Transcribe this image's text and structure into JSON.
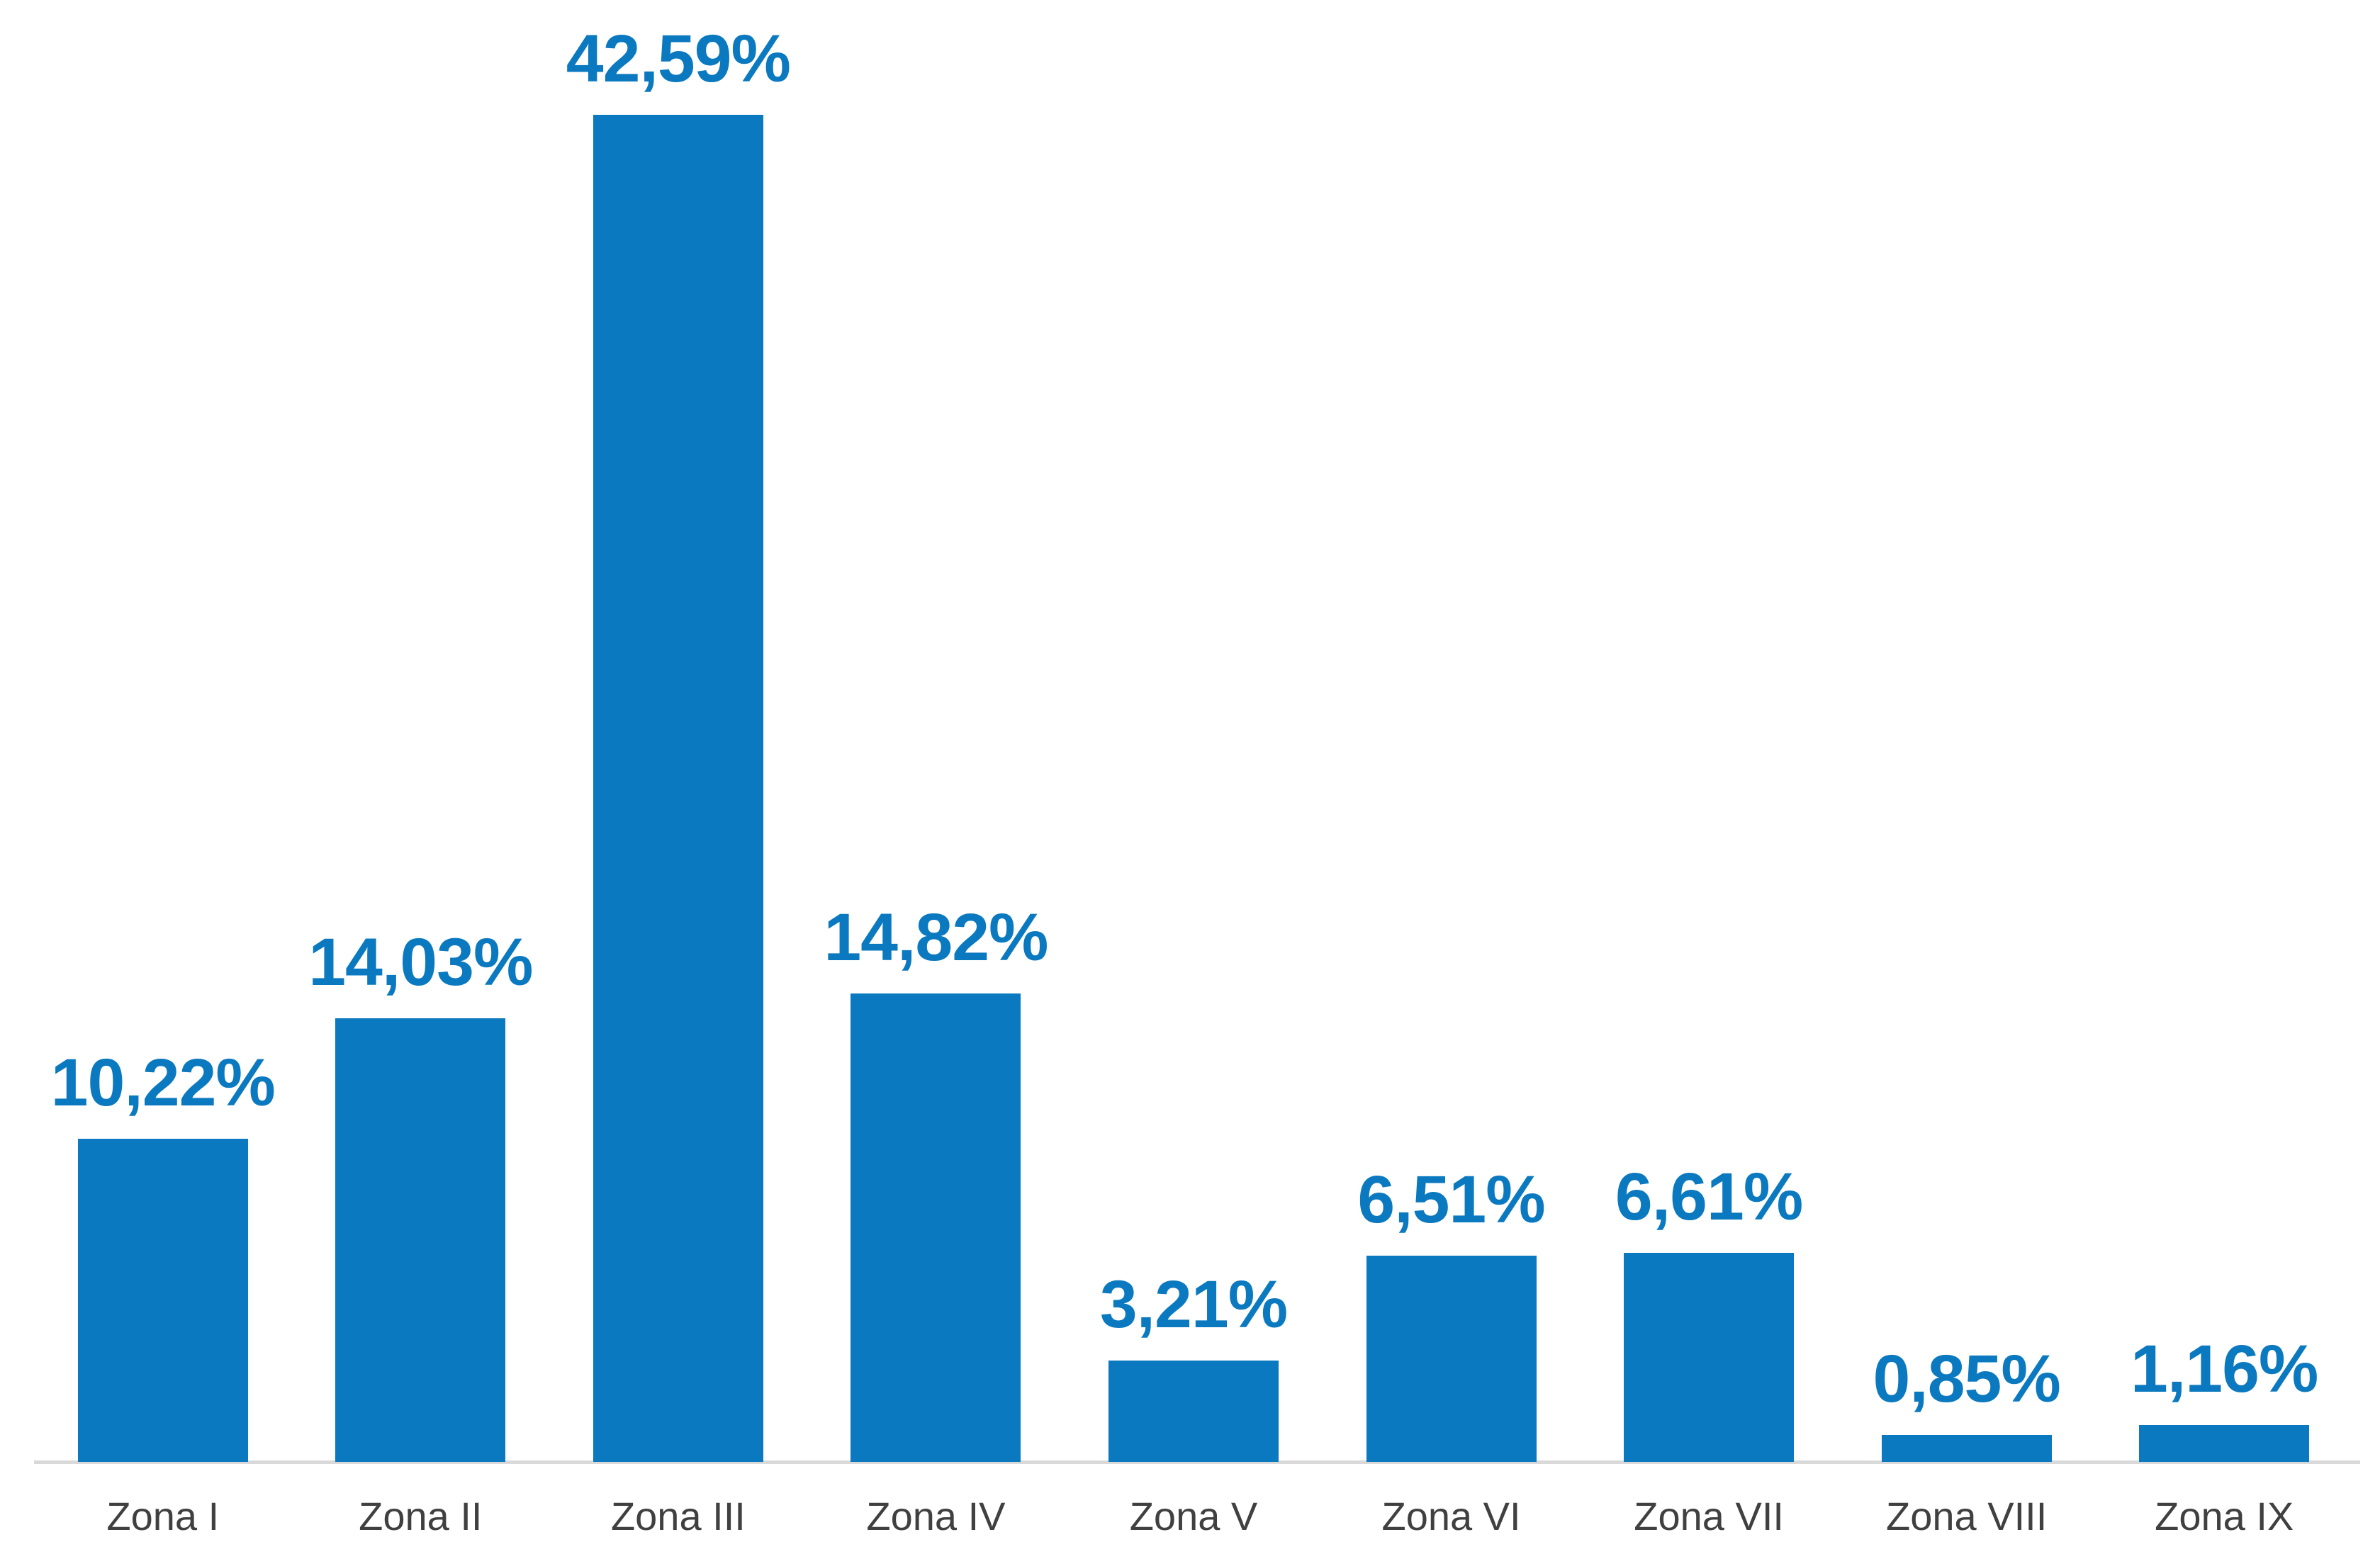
{
  "colors": {
    "bar": "#0b79bf",
    "value_label": "#0b79bf",
    "category_label": "#404040",
    "baseline": "#d9d9d9",
    "background": "#ffffff"
  },
  "chart_data": {
    "type": "bar",
    "categories": [
      "Zona I",
      "Zona II",
      "Zona III",
      "Zona IV",
      "Zona V",
      "Zona VI",
      "Zona VII",
      "Zona VIII",
      "Zona IX"
    ],
    "values": [
      10.22,
      14.03,
      42.59,
      14.82,
      3.21,
      6.51,
      6.61,
      0.85,
      1.16
    ],
    "value_labels": [
      "10,22%",
      "14,03%",
      "42,59%",
      "14,82%",
      "3,21%",
      "6,51%",
      "6,61%",
      "0,85%",
      "1,16%"
    ],
    "title": "",
    "xlabel": "",
    "ylabel": "",
    "ylim": [
      0,
      45
    ],
    "grid": false,
    "legend": false,
    "data_labels": "above-bars",
    "decimal_separator": ","
  }
}
